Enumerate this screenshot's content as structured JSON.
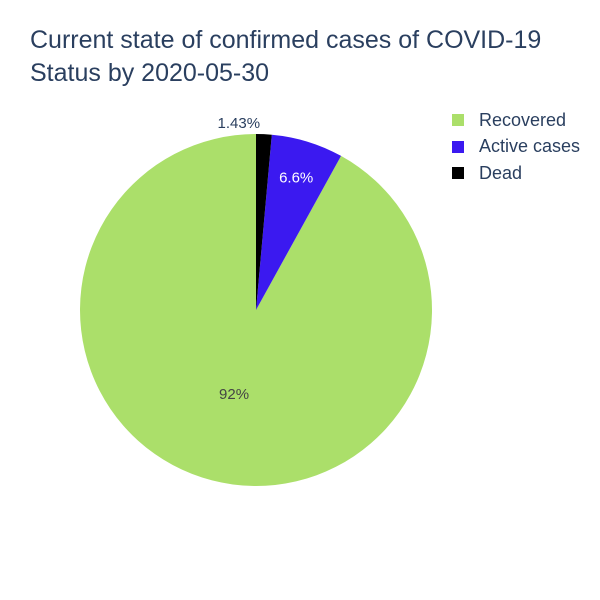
{
  "title": {
    "line1": "Current state of confirmed cases of COVID-19",
    "line2": "Status by 2020-05-30"
  },
  "chart_data": {
    "type": "pie",
    "labels": [
      "Recovered",
      "Active cases",
      "Dead"
    ],
    "values": [
      92.0,
      6.6,
      1.43
    ],
    "display_labels": [
      "92%",
      "6.6%",
      "1.43%"
    ],
    "colors": [
      "#abdf6a",
      "#3b19f0",
      "#000000"
    ],
    "direction": "counterclockwise",
    "start": "top",
    "legend_position": "top-right"
  },
  "legend": {
    "items": [
      {
        "label": "Recovered",
        "color": "#abdf6a"
      },
      {
        "label": "Active cases",
        "color": "#3b19f0"
      },
      {
        "label": "Dead",
        "color": "#000000"
      }
    ]
  }
}
